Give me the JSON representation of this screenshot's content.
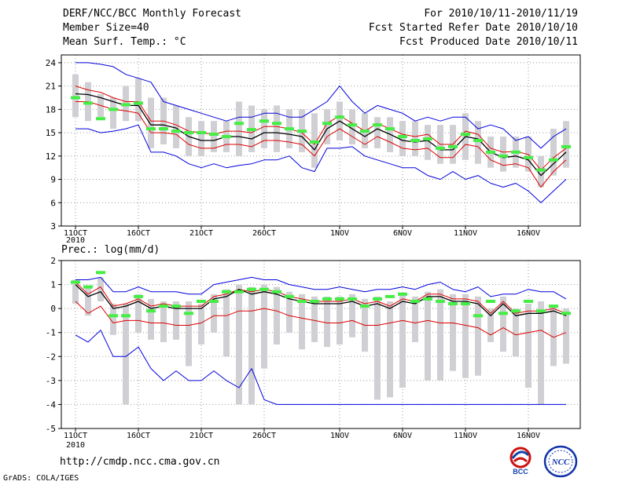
{
  "header": {
    "title": "DERF/NCC/BCC Monthly Forecast",
    "member_size": "Member Size=40",
    "variable": "Mean Surf. Temp.: °C",
    "forecast_period": "For 2010/10/11-2010/11/19",
    "started_refer_date": "Fcst Started Refer Date 2010/10/10",
    "produced_date": "Fcst Produced Date 2010/10/11"
  },
  "footer": {
    "url": "http://cmdp.ncc.cma.gov.cn",
    "credit": "GrADS: COLA/IGES"
  },
  "logos": {
    "bcc": "BCC",
    "ncc": "NCC"
  },
  "colors": {
    "envelope": "#0000dd",
    "ensemble_mean": "#000000",
    "lower_line": "#dd0000",
    "bar": "#d0d0d4",
    "marker": "#44ee44",
    "grid": "#999999"
  },
  "chart_data": [
    {
      "type": "line",
      "title": "Mean Surf. Temp.: °C",
      "ylim": [
        3,
        25
      ],
      "yticks": [
        3,
        6,
        9,
        12,
        15,
        18,
        21,
        24
      ],
      "xlabel_positions": [
        0,
        5,
        10,
        15,
        21,
        26,
        31,
        36
      ],
      "xlabels": [
        "11OCT",
        "16OCT",
        "21OCT",
        "26OCT",
        "1NOV",
        "6NOV",
        "11NOV",
        "16NOV"
      ],
      "xlabel_year": "2010",
      "days": 40,
      "upper_envelope": [
        24.0,
        24.0,
        23.8,
        23.5,
        22.5,
        22.0,
        21.5,
        19.0,
        18.5,
        18.0,
        17.5,
        17.0,
        16.5,
        17.0,
        17.0,
        17.5,
        17.5,
        17.0,
        17.0,
        18.0,
        19.0,
        21.0,
        19.0,
        17.5,
        18.5,
        18.0,
        17.5,
        16.5,
        17.0,
        16.5,
        17.0,
        17.0,
        15.5,
        16.0,
        15.5,
        14.0,
        14.5,
        13.0,
        14.5,
        15.5
      ],
      "mean": [
        20.0,
        19.9,
        19.5,
        19.0,
        18.5,
        18.5,
        16.0,
        16.0,
        15.6,
        14.5,
        14.0,
        14.0,
        14.5,
        14.5,
        14.2,
        15.0,
        15.0,
        14.8,
        14.5,
        12.8,
        15.5,
        16.5,
        15.5,
        14.5,
        15.5,
        14.8,
        14.0,
        13.8,
        14.0,
        12.8,
        12.8,
        14.5,
        14.2,
        12.5,
        11.8,
        12.0,
        11.5,
        9.5,
        11.0,
        12.5
      ],
      "upper_line": [
        21.0,
        20.5,
        20.2,
        19.5,
        19.0,
        19.0,
        16.5,
        16.5,
        16.0,
        15.2,
        15.0,
        14.8,
        15.2,
        15.2,
        15.0,
        15.8,
        15.8,
        15.5,
        15.0,
        13.5,
        16.2,
        17.2,
        16.2,
        15.2,
        16.2,
        15.5,
        14.8,
        14.5,
        14.8,
        13.5,
        13.5,
        15.2,
        14.8,
        13.0,
        12.5,
        12.6,
        12.2,
        10.2,
        11.8,
        13.0
      ],
      "lower_line": [
        19.0,
        19.0,
        18.5,
        18.0,
        17.8,
        17.5,
        15.0,
        15.0,
        14.8,
        13.5,
        13.0,
        13.0,
        13.5,
        13.5,
        13.2,
        14.0,
        14.0,
        13.8,
        13.5,
        12.0,
        14.5,
        15.5,
        14.5,
        13.5,
        14.5,
        13.8,
        13.0,
        12.8,
        13.0,
        11.8,
        11.8,
        13.5,
        13.2,
        11.5,
        10.8,
        11.0,
        10.5,
        8.0,
        10.0,
        11.5
      ],
      "lower_envelope": [
        15.5,
        15.5,
        15.0,
        15.2,
        15.5,
        16.0,
        12.5,
        12.5,
        12.0,
        11.0,
        10.5,
        11.0,
        10.5,
        10.8,
        11.0,
        11.5,
        11.5,
        12.0,
        10.5,
        10.0,
        13.0,
        13.0,
        13.2,
        12.0,
        11.5,
        11.0,
        10.5,
        10.5,
        9.5,
        9.0,
        10.0,
        9.0,
        9.5,
        8.5,
        8.0,
        8.5,
        7.5,
        6.0,
        7.5,
        9.0
      ],
      "bar_top": [
        22.5,
        21.5,
        20.0,
        19.5,
        21.0,
        22.0,
        19.5,
        19.5,
        18.5,
        17.0,
        16.5,
        16.5,
        16.5,
        19.0,
        18.5,
        18.0,
        18.5,
        18.0,
        18.0,
        17.5,
        18.0,
        19.0,
        18.0,
        17.5,
        17.0,
        17.0,
        16.5,
        16.5,
        16.0,
        16.0,
        16.0,
        17.5,
        16.5,
        14.5,
        14.5,
        14.5,
        14.5,
        12.0,
        15.5,
        16.5
      ],
      "bar_bottom": [
        17.0,
        16.5,
        17.0,
        15.5,
        16.5,
        16.5,
        13.0,
        13.5,
        13.0,
        12.0,
        12.0,
        12.5,
        12.5,
        12.0,
        12.5,
        13.0,
        12.5,
        13.0,
        12.5,
        10.5,
        13.5,
        14.0,
        13.5,
        13.0,
        13.0,
        12.5,
        12.0,
        12.0,
        11.5,
        11.0,
        11.0,
        11.5,
        11.0,
        10.5,
        10.0,
        10.5,
        10.0,
        8.0,
        9.5,
        10.5
      ],
      "markers": [
        19.5,
        18.8,
        16.8,
        18.0,
        18.6,
        18.8,
        15.5,
        15.5,
        15.2,
        15.0,
        15.0,
        14.8,
        14.5,
        16.2,
        15.4,
        16.5,
        16.2,
        15.5,
        15.2,
        13.8,
        16.2,
        17.0,
        16.0,
        15.2,
        16.0,
        15.5,
        14.5,
        14.0,
        14.2,
        13.0,
        13.2,
        14.8,
        14.0,
        12.5,
        12.0,
        12.5,
        11.8,
        10.2,
        11.5,
        13.2
      ]
    },
    {
      "type": "line",
      "title": "Prec.: log(mm/d)",
      "ylim": [
        -5,
        2
      ],
      "yticks": [
        -5,
        -4,
        -3,
        -2,
        -1,
        0,
        1,
        2
      ],
      "xlabel_positions": [
        0,
        5,
        10,
        15,
        21,
        26,
        31,
        36
      ],
      "xlabels": [
        "11OCT",
        "16OCT",
        "21OCT",
        "26OCT",
        "1NOV",
        "6NOV",
        "11NOV",
        "16NOV"
      ],
      "xlabel_year": "2010",
      "days": 40,
      "upper_envelope": [
        1.2,
        1.2,
        1.3,
        0.7,
        0.7,
        0.9,
        0.7,
        0.7,
        0.7,
        0.6,
        0.6,
        1.0,
        1.1,
        1.2,
        1.3,
        1.2,
        1.2,
        1.0,
        0.9,
        0.8,
        0.8,
        0.9,
        0.8,
        0.7,
        0.8,
        0.8,
        0.9,
        0.8,
        1.0,
        1.1,
        0.8,
        0.7,
        0.9,
        0.5,
        0.6,
        0.6,
        0.8,
        0.7,
        0.7,
        0.4
      ],
      "mean": [
        1.0,
        0.5,
        0.7,
        0.0,
        0.1,
        0.3,
        0.0,
        0.1,
        0.0,
        0.0,
        0.0,
        0.4,
        0.5,
        0.8,
        0.6,
        0.7,
        0.6,
        0.4,
        0.3,
        0.2,
        0.2,
        0.2,
        0.3,
        0.1,
        0.2,
        0.0,
        0.3,
        0.2,
        0.5,
        0.5,
        0.3,
        0.3,
        0.2,
        -0.3,
        0.2,
        -0.3,
        -0.2,
        -0.2,
        -0.1,
        -0.3
      ],
      "upper_line": [
        1.1,
        0.6,
        0.9,
        0.1,
        0.2,
        0.4,
        0.1,
        0.2,
        0.1,
        0.1,
        0.1,
        0.5,
        0.6,
        0.8,
        0.7,
        0.8,
        0.7,
        0.5,
        0.4,
        0.3,
        0.3,
        0.3,
        0.4,
        0.2,
        0.3,
        0.1,
        0.4,
        0.3,
        0.6,
        0.6,
        0.4,
        0.4,
        0.3,
        -0.2,
        0.3,
        -0.2,
        -0.1,
        -0.1,
        0.0,
        -0.2
      ],
      "lower_line": [
        0.3,
        -0.2,
        0.1,
        -0.6,
        -0.5,
        -0.5,
        -0.6,
        -0.6,
        -0.7,
        -0.7,
        -0.6,
        -0.3,
        -0.3,
        -0.1,
        -0.1,
        0.0,
        -0.1,
        -0.3,
        -0.4,
        -0.5,
        -0.6,
        -0.6,
        -0.5,
        -0.7,
        -0.7,
        -0.6,
        -0.5,
        -0.6,
        -0.5,
        -0.6,
        -0.6,
        -0.7,
        -0.8,
        -1.1,
        -0.8,
        -1.1,
        -1.0,
        -0.9,
        -1.2,
        -1.0
      ],
      "lower_envelope": [
        -1.1,
        -1.4,
        -0.9,
        -2.0,
        -2.0,
        -1.6,
        -2.5,
        -3.0,
        -2.6,
        -3.0,
        -3.0,
        -2.6,
        -3.0,
        -3.3,
        -2.5,
        -3.8,
        -4.0,
        -4.0,
        -4.0,
        -4.0,
        -4.0,
        -4.0,
        -4.0,
        -4.0,
        -4.0,
        -4.0,
        -4.0,
        -4.0,
        -4.0,
        -4.0,
        -4.0,
        -4.0,
        -4.0,
        -4.0,
        -4.0,
        -4.0,
        -4.0,
        -4.0,
        -4.0,
        -4.0
      ],
      "bar_top": [
        1.2,
        0.9,
        1.3,
        0.2,
        0.2,
        0.6,
        0.4,
        0.3,
        0.3,
        0.3,
        0.2,
        0.6,
        0.8,
        1.0,
        0.9,
        1.0,
        0.9,
        0.7,
        0.6,
        0.5,
        0.5,
        0.5,
        0.6,
        0.4,
        0.5,
        0.3,
        0.6,
        0.5,
        0.7,
        0.8,
        0.6,
        0.6,
        0.5,
        0.0,
        0.5,
        0.0,
        0.2,
        0.3,
        0.1,
        0.0
      ],
      "bar_bottom": [
        0.2,
        -0.3,
        0.3,
        -1.1,
        -4.0,
        -1.0,
        -1.3,
        -1.4,
        -1.3,
        -2.4,
        -1.5,
        -1.0,
        -2.0,
        -4.0,
        -4.0,
        -2.5,
        -1.5,
        -1.0,
        -1.7,
        -1.4,
        -1.6,
        -1.5,
        -1.2,
        -1.8,
        -3.8,
        -3.7,
        -3.3,
        -1.4,
        -3.0,
        -3.0,
        -2.6,
        -2.9,
        -2.8,
        -1.4,
        -1.8,
        -2.0,
        -3.3,
        -4.0,
        -2.4,
        -2.3
      ],
      "markers": [
        1.1,
        0.9,
        1.5,
        -0.3,
        -0.3,
        0.5,
        -0.1,
        0.1,
        0.1,
        -0.2,
        0.3,
        0.3,
        0.7,
        0.7,
        0.8,
        0.8,
        0.7,
        0.5,
        0.3,
        0.3,
        0.4,
        0.4,
        0.4,
        0.1,
        0.4,
        0.5,
        0.6,
        0.3,
        0.4,
        0.3,
        0.2,
        0.2,
        -0.3,
        0.3,
        -0.2,
        -0.1,
        0.3,
        -0.1,
        0.1,
        -0.2
      ]
    }
  ]
}
